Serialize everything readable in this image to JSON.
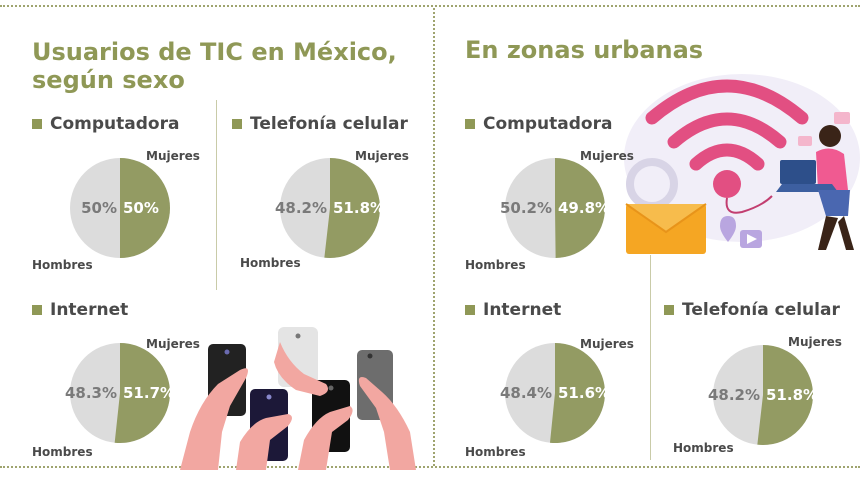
{
  "colors": {
    "accent": "#8f9856",
    "women": "#939b63",
    "men": "#dcdcdc",
    "text": "#4a4a4a"
  },
  "left_section": {
    "title_line1": "Usuarios de TIC en México,",
    "title_line2": "según sexo"
  },
  "right_section": {
    "title": "En zonas urbanas"
  },
  "legend": {
    "women": "Mujeres",
    "men": "Hombres"
  },
  "chart_data": [
    {
      "type": "pie",
      "title": "Computadora",
      "labels": [
        "Hombres",
        "Mujeres"
      ],
      "values": [
        50,
        50
      ],
      "value_labels": [
        "50%",
        "50%"
      ]
    },
    {
      "type": "pie",
      "title": "Telefonía celular",
      "labels": [
        "Hombres",
        "Mujeres"
      ],
      "values": [
        48.2,
        51.8
      ],
      "value_labels": [
        "48.2%",
        "51.8%"
      ]
    },
    {
      "type": "pie",
      "title": "Internet",
      "labels": [
        "Hombres",
        "Mujeres"
      ],
      "values": [
        48.3,
        51.7
      ],
      "value_labels": [
        "48.3%",
        "51.7%"
      ]
    },
    {
      "type": "pie",
      "title": "Computadora",
      "labels": [
        "Hombres",
        "Mujeres"
      ],
      "values": [
        50.2,
        49.8
      ],
      "value_labels": [
        "50.2%",
        "49.8%"
      ]
    },
    {
      "type": "pie",
      "title": "Internet",
      "labels": [
        "Hombres",
        "Mujeres"
      ],
      "values": [
        48.4,
        51.6
      ],
      "value_labels": [
        "48.4%",
        "51.6%"
      ]
    },
    {
      "type": "pie",
      "title": "Telefonía celular",
      "labels": [
        "Hombres",
        "Mujeres"
      ],
      "values": [
        48.2,
        51.8
      ],
      "value_labels": [
        "48.2%",
        "51.8%"
      ]
    }
  ],
  "icons": [
    "phones-illustration",
    "wifi-illustration",
    "envelope-icon",
    "location-pin-icon",
    "play-icon",
    "woman-laptop-illustration"
  ]
}
